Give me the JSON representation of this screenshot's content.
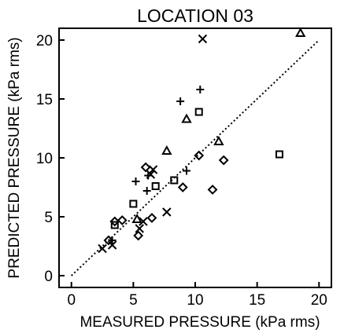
{
  "chart_data": {
    "type": "scatter",
    "title": "LOCATION 03",
    "xlabel": "MEASURED PRESSURE  (kPa rms)",
    "ylabel": "PREDICTED PRESSURE  (kPa rms)",
    "xlim": [
      -1,
      21
    ],
    "ylim": [
      -1,
      21
    ],
    "xticks": [
      0,
      5,
      10,
      15,
      20
    ],
    "yticks": [
      0,
      5,
      10,
      15,
      20
    ],
    "xtick_labels": [
      "0",
      "5",
      "10",
      "15",
      "20"
    ],
    "ytick_labels": [
      "0",
      "5",
      "10",
      "15",
      "20"
    ],
    "grid": false,
    "reference_line": {
      "style": "dotted",
      "from": [
        0,
        0
      ],
      "to": [
        20,
        20
      ]
    },
    "series": [
      {
        "marker": "triangle",
        "points": [
          [
            18.5,
            20.6
          ],
          [
            9.3,
            13.3
          ],
          [
            7.7,
            10.6
          ],
          [
            11.9,
            11.4
          ],
          [
            5.3,
            4.8
          ]
        ]
      },
      {
        "marker": "plus",
        "points": [
          [
            10.4,
            15.8
          ],
          [
            8.8,
            14.8
          ],
          [
            5.2,
            8.0
          ],
          [
            6.1,
            7.2
          ],
          [
            9.3,
            8.9
          ],
          [
            6.2,
            8.5
          ],
          [
            3.3,
            3.0
          ]
        ]
      },
      {
        "marker": "cross",
        "points": [
          [
            10.6,
            20.1
          ],
          [
            6.4,
            8.6
          ],
          [
            6.6,
            9.0
          ],
          [
            7.7,
            5.4
          ],
          [
            2.5,
            2.3
          ],
          [
            3.3,
            2.6
          ],
          [
            5.5,
            4.0
          ],
          [
            5.8,
            4.6
          ]
        ]
      },
      {
        "marker": "square",
        "points": [
          [
            10.3,
            13.9
          ],
          [
            16.8,
            10.3
          ],
          [
            8.3,
            8.1
          ],
          [
            6.8,
            7.6
          ],
          [
            5.0,
            6.1
          ],
          [
            3.5,
            4.3
          ]
        ]
      },
      {
        "marker": "diamond",
        "points": [
          [
            10.3,
            10.2
          ],
          [
            12.3,
            9.8
          ],
          [
            6.0,
            9.2
          ],
          [
            9.0,
            7.5
          ],
          [
            11.4,
            7.3
          ],
          [
            3.5,
            4.6
          ],
          [
            4.1,
            4.7
          ],
          [
            6.5,
            4.9
          ],
          [
            5.4,
            3.4
          ],
          [
            3.0,
            3.0
          ]
        ]
      }
    ]
  }
}
